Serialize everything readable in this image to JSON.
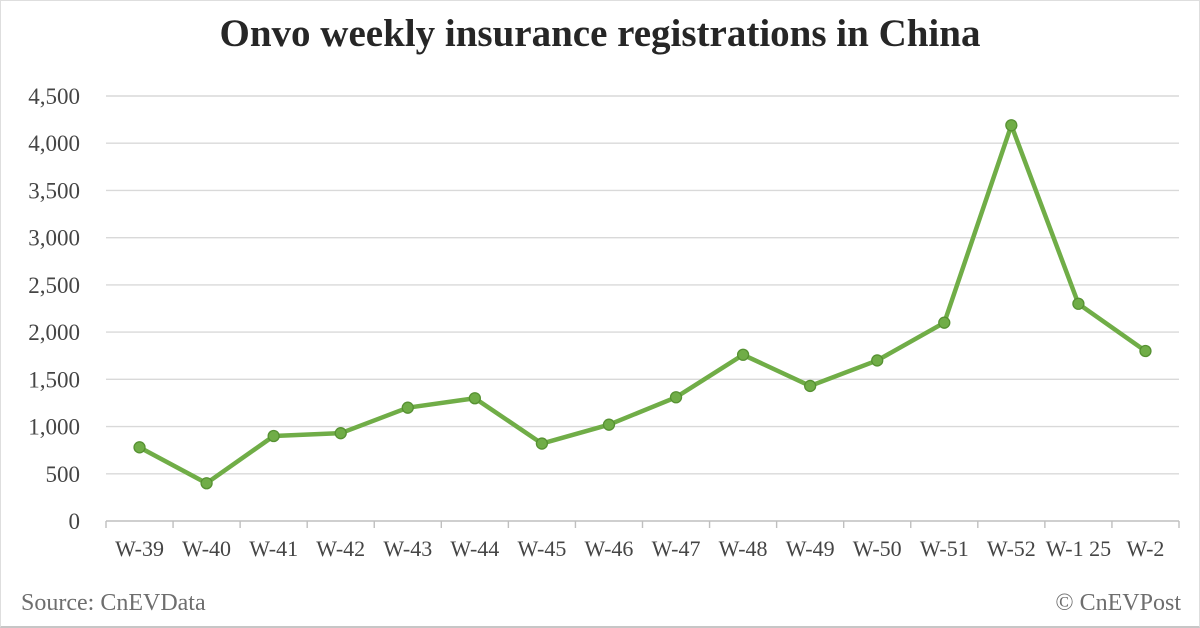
{
  "page": {
    "title": "Onvo weekly insurance registrations in China"
  },
  "footer": {
    "source": "Source: CnEVData",
    "credit": "© CnEVPost"
  },
  "colors": {
    "line": "#70ad47",
    "marker_fill": "#70ad47",
    "marker_stroke": "#569132",
    "grid": "#d9d9d9",
    "axis": "#bfbfbf",
    "tick_label": "#454545",
    "title": "#262626",
    "footer_text": "#6e6e6e"
  },
  "chart_data": {
    "type": "line",
    "title": "Onvo weekly insurance registrations in China",
    "categories": [
      "W-39",
      "W-40",
      "W-41",
      "W-42",
      "W-43",
      "W-44",
      "W-45",
      "W-46",
      "W-47",
      "W-48",
      "W-49",
      "W-50",
      "W-51",
      "W-52",
      "W-1 25",
      "W-2"
    ],
    "values": [
      780,
      400,
      900,
      930,
      1200,
      1300,
      820,
      1020,
      1310,
      1760,
      1430,
      1700,
      2100,
      4190,
      2300,
      1800
    ],
    "series_name": "Onvo weekly insurance registrations",
    "xlabel": "",
    "ylabel": "",
    "ylim": [
      0,
      4500
    ],
    "y_tick_step": 500,
    "y_tick_labels": [
      "0",
      "500",
      "1,000",
      "1,500",
      "2,000",
      "2,500",
      "3,000",
      "3,500",
      "4,000",
      "4,500"
    ],
    "grid": true,
    "legend_position": "none",
    "marker": "circle"
  }
}
